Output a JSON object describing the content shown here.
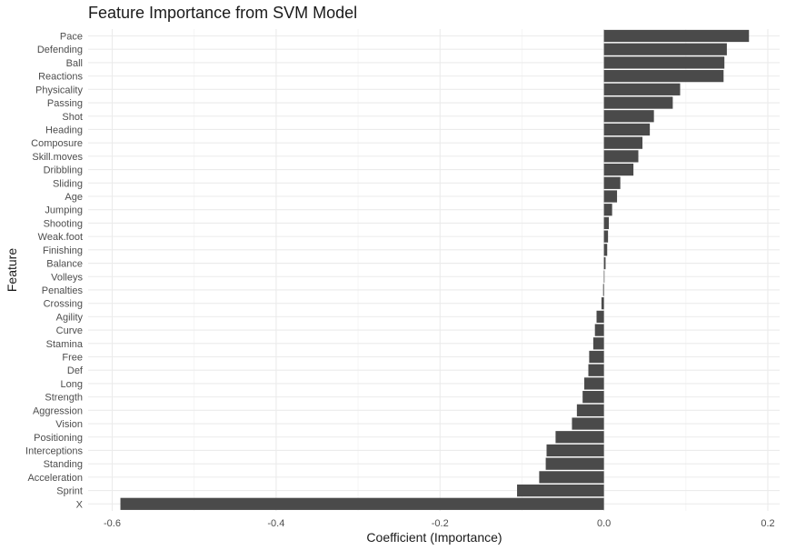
{
  "chart_data": {
    "type": "bar",
    "orientation": "horizontal",
    "title": "Feature Importance from SVM Model",
    "xlabel": "Coefficient (Importance)",
    "ylabel": "Feature",
    "xlim": [
      -0.6,
      0.2
    ],
    "x_ticks": [
      "-0.6",
      "-0.4",
      "-0.2",
      "0.0",
      "0.2"
    ],
    "x_tick_values": [
      -0.6,
      -0.4,
      -0.2,
      0.0,
      0.2
    ],
    "grid": true,
    "bar_color": "#4a4a4a",
    "categories": [
      "Pace",
      "Defending",
      "Ball",
      "Reactions",
      "Physicality",
      "Passing",
      "Shot",
      "Heading",
      "Composure",
      "Skill.moves",
      "Dribbling",
      "Sliding",
      "Age",
      "Jumping",
      "Shooting",
      "Weak.foot",
      "Finishing",
      "Balance",
      "Volleys",
      "Penalties",
      "Crossing",
      "Agility",
      "Curve",
      "Stamina",
      "Free",
      "Def",
      "Long",
      "Strength",
      "Aggression",
      "Vision",
      "Positioning",
      "Interceptions",
      "Standing",
      "Acceleration",
      "Sprint",
      "X"
    ],
    "values": [
      0.177,
      0.15,
      0.147,
      0.146,
      0.093,
      0.084,
      0.061,
      0.056,
      0.047,
      0.042,
      0.036,
      0.02,
      0.016,
      0.01,
      0.006,
      0.005,
      0.004,
      0.002,
      0.0005,
      -0.001,
      -0.003,
      -0.009,
      -0.011,
      -0.013,
      -0.018,
      -0.019,
      -0.024,
      -0.026,
      -0.033,
      -0.039,
      -0.059,
      -0.07,
      -0.071,
      -0.079,
      -0.106,
      -0.59
    ]
  }
}
